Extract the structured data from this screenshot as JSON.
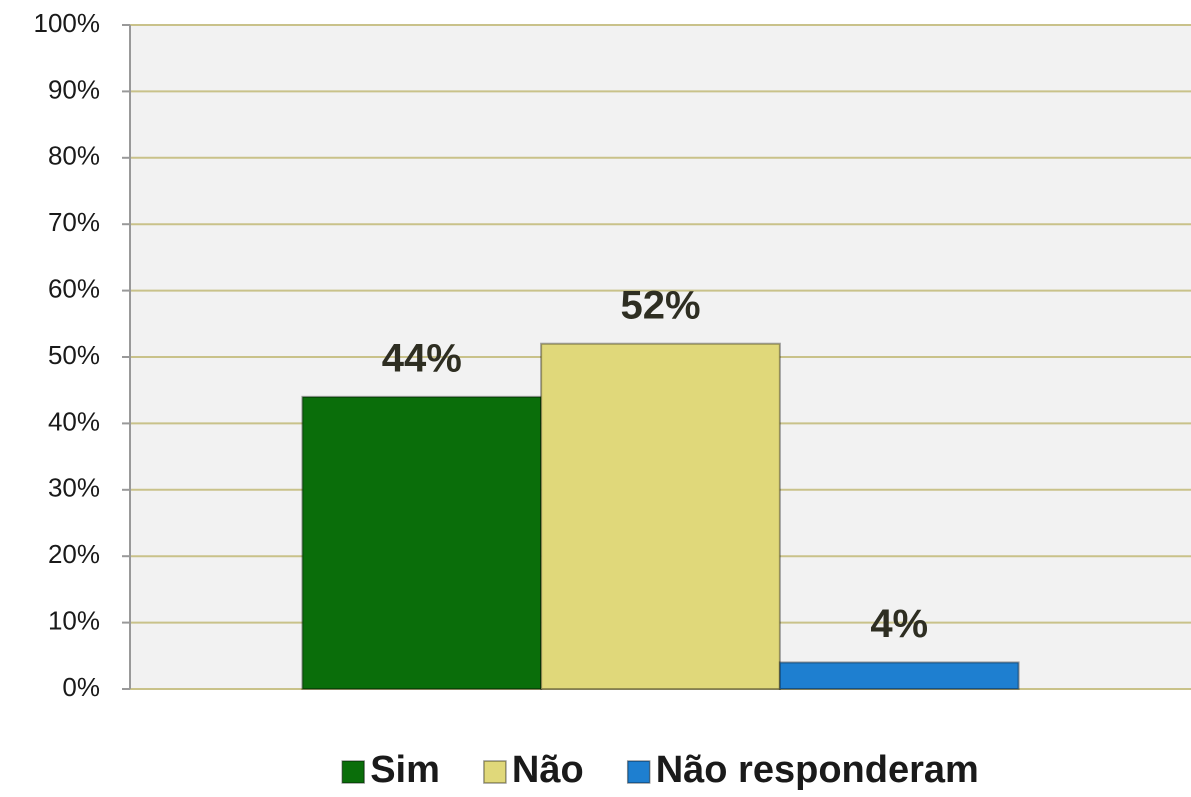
{
  "chart_data": {
    "type": "bar",
    "categories": [
      null
    ],
    "series": [
      {
        "name": "Sim",
        "color": "#0a6e0a",
        "values": [
          44
        ],
        "value_labels": [
          "44%"
        ]
      },
      {
        "name": "Não",
        "color": "#e0d87a",
        "values": [
          52
        ],
        "value_labels": [
          "52%"
        ]
      },
      {
        "name": "Não responderam",
        "color": "#1e7fd0",
        "values": [
          4
        ],
        "value_labels": [
          "4%"
        ]
      }
    ],
    "ylim": [
      0,
      100
    ],
    "yticks": [
      {
        "value": 0,
        "label": "0%"
      },
      {
        "value": 10,
        "label": "10%"
      },
      {
        "value": 20,
        "label": "20%"
      },
      {
        "value": 30,
        "label": "30%"
      },
      {
        "value": 40,
        "label": "40%"
      },
      {
        "value": 50,
        "label": "50%"
      },
      {
        "value": 60,
        "label": "60%"
      },
      {
        "value": 70,
        "label": "70%"
      },
      {
        "value": 80,
        "label": "80%"
      },
      {
        "value": 90,
        "label": "90%"
      },
      {
        "value": 100,
        "label": "100%"
      }
    ],
    "grid": true,
    "legend": "bottom"
  }
}
